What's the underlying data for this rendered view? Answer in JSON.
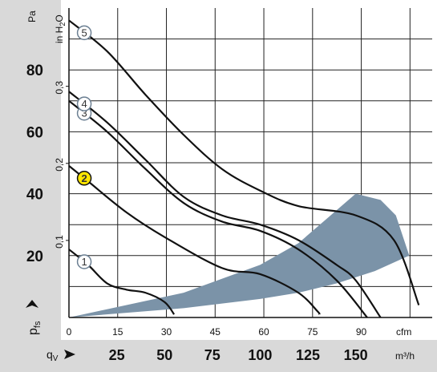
{
  "chart_data": {
    "type": "line",
    "title": "",
    "y_axis_left": {
      "unit": "Pa",
      "label_main": "p",
      "label_sub": "fs",
      "ticks": [
        20,
        40,
        60,
        80
      ],
      "range": [
        0,
        100
      ]
    },
    "y_axis_inner": {
      "unit_main": "in H",
      "unit_sub": "2",
      "unit_tail": "O",
      "ticks": [
        "0,1",
        "0,2",
        "0,3"
      ],
      "tick_values": [
        24.9,
        49.8,
        74.7
      ]
    },
    "x_axis_cfm": {
      "unit": "cfm",
      "ticks": [
        "0",
        "15",
        "30",
        "45",
        "60",
        "75",
        "90"
      ],
      "tick_values": [
        0,
        15,
        30,
        45,
        60,
        75,
        90
      ]
    },
    "x_axis_m3h": {
      "label_main": "q",
      "label_sub": "V",
      "unit": "m³/h",
      "ticks": [
        "25",
        "50",
        "75",
        "100",
        "125",
        "150"
      ],
      "tick_values": [
        25,
        50,
        75,
        100,
        125,
        150
      ]
    },
    "xlim_m3h": [
      0,
      190
    ],
    "ylim_pa": [
      0,
      100
    ],
    "grid": true,
    "series": [
      {
        "label": "1",
        "highlight": false,
        "x": [
          0,
          10,
          20,
          30,
          40,
          50,
          55
        ],
        "y": [
          22,
          17,
          11,
          9,
          8,
          5,
          1
        ]
      },
      {
        "label": "2",
        "highlight": true,
        "x": [
          0,
          10,
          30,
          50,
          80,
          100,
          120,
          130,
          131
        ],
        "y": [
          49,
          44,
          34,
          26,
          16,
          14,
          8,
          2,
          1
        ]
      },
      {
        "label": "3",
        "highlight": false,
        "x": [
          0,
          20,
          40,
          60,
          80,
          100,
          120,
          140,
          156
        ],
        "y": [
          70,
          60,
          48,
          37,
          31,
          28,
          22,
          12,
          0
        ]
      },
      {
        "label": "4",
        "highlight": false,
        "x": [
          0,
          20,
          40,
          60,
          80,
          100,
          120,
          140,
          150,
          163
        ],
        "y": [
          73,
          63,
          51,
          39,
          33,
          30,
          25,
          17,
          12,
          0
        ]
      },
      {
        "label": "5",
        "highlight": false,
        "x": [
          0,
          20,
          40,
          60,
          80,
          100,
          120,
          150,
          170,
          183
        ],
        "y": [
          96,
          86,
          72,
          59,
          48,
          41,
          36,
          33,
          25,
          4
        ]
      }
    ],
    "shaded_region": {
      "color": "#7b93a8",
      "upper": {
        "x": [
          0,
          60,
          100,
          120,
          135,
          150,
          163,
          171,
          178
        ],
        "y": [
          0,
          8,
          17,
          24,
          32,
          40,
          38,
          33,
          20
        ]
      },
      "lower": {
        "x": [
          0,
          60,
          100,
          120,
          140,
          160,
          178
        ],
        "y": [
          0,
          3,
          6,
          8,
          11,
          15,
          20
        ]
      }
    }
  }
}
